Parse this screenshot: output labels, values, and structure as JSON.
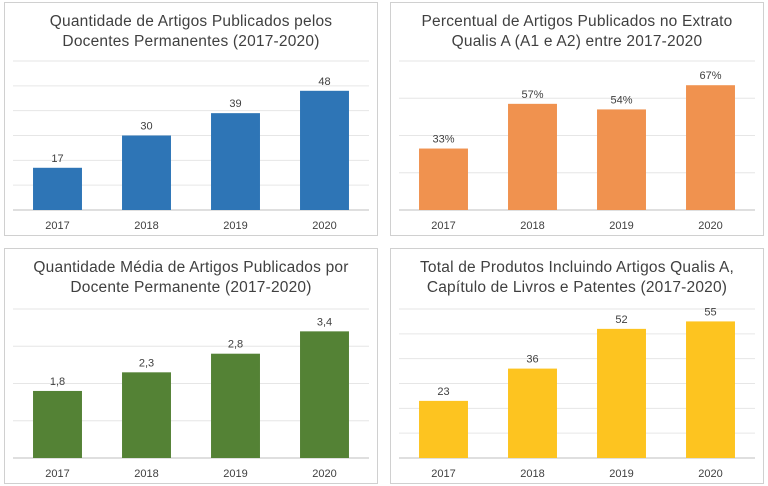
{
  "chart_data": [
    {
      "type": "bar",
      "title_lines": [
        "Quantidade de Artigos Publicados pelos",
        "Docentes Permanentes (2017-2020)"
      ],
      "categories": [
        "2017",
        "2018",
        "2019",
        "2020"
      ],
      "values": [
        17,
        30,
        39,
        48
      ],
      "labels": [
        "17",
        "30",
        "39",
        "48"
      ],
      "ylim": [
        0,
        60
      ],
      "color": "#2e75b6"
    },
    {
      "type": "bar",
      "title_lines": [
        "Percentual de Artigos Publicados no Extrato",
        "Qualis A (A1 e A2) entre 2017-2020"
      ],
      "categories": [
        "2017",
        "2018",
        "2019",
        "2020"
      ],
      "values": [
        33,
        57,
        54,
        67
      ],
      "labels": [
        "33%",
        "57%",
        "54%",
        "67%"
      ],
      "ylim": [
        0,
        80
      ],
      "color": "#f0924f"
    },
    {
      "type": "bar",
      "title_lines": [
        "Quantidade Média de Artigos Publicados por",
        "Docente Permanente (2017-2020)"
      ],
      "categories": [
        "2017",
        "2018",
        "2019",
        "2020"
      ],
      "values": [
        1.8,
        2.3,
        2.8,
        3.4
      ],
      "labels": [
        "1,8",
        "2,3",
        "2,8",
        "3,4"
      ],
      "ylim": [
        0,
        4
      ],
      "color": "#548235"
    },
    {
      "type": "bar",
      "title_lines": [
        "Total de Produtos Incluindo Artigos Qualis A,",
        "Capítulo de Livros e Patentes (2017-2020)"
      ],
      "categories": [
        "2017",
        "2018",
        "2019",
        "2020"
      ],
      "values": [
        23,
        36,
        52,
        55
      ],
      "labels": [
        "23",
        "36",
        "52",
        "55"
      ],
      "ylim": [
        0,
        60
      ],
      "color": "#fdc420"
    }
  ]
}
